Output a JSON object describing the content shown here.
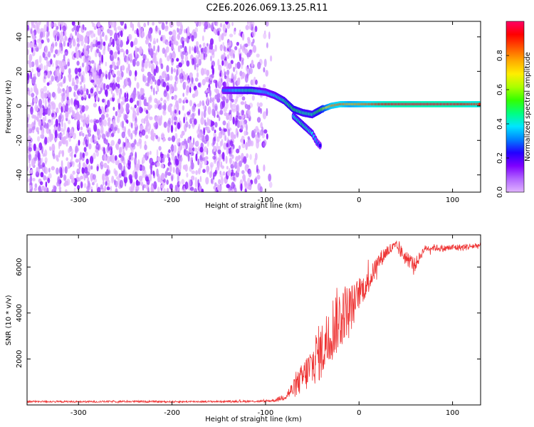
{
  "title": "C2E6.2026.069.13.25.R11",
  "chart_data": [
    {
      "type": "heatmap",
      "name": "spectrogram",
      "xlabel": "Height of straight line (km)",
      "ylabel": "Frequency (Hz)",
      "xlim": [
        -355,
        130
      ],
      "ylim": [
        -50,
        49
      ],
      "xticks": [
        -300,
        -200,
        -100,
        0,
        100
      ],
      "yticks": [
        -40,
        -20,
        0,
        20,
        40
      ],
      "colorbar": {
        "label": "Normalized spectral amplitude",
        "range": [
          0,
          1
        ],
        "ticks": [
          0.0,
          0.2,
          0.4,
          0.6,
          0.8
        ],
        "colormap": [
          "#e0b3ff",
          "#b266ff",
          "#7f00ff",
          "#2200ff",
          "#0080ff",
          "#00e5ff",
          "#00ff80",
          "#33ff00",
          "#aaff00",
          "#ffee00",
          "#ffaa00",
          "#ff5500",
          "#ff0000",
          "#ff0066"
        ]
      },
      "noise_region": {
        "x_from": -355,
        "x_to": -90,
        "y_from": -50,
        "y_to": 49,
        "amplitude": 0.1
      },
      "signal_ridge": [
        {
          "x": -145,
          "y": 9,
          "a": 0.3
        },
        {
          "x": -130,
          "y": 9,
          "a": 0.4
        },
        {
          "x": -115,
          "y": 9,
          "a": 0.45
        },
        {
          "x": -100,
          "y": 8,
          "a": 0.35
        },
        {
          "x": -90,
          "y": 6,
          "a": 0.4
        },
        {
          "x": -80,
          "y": 3,
          "a": 0.45
        },
        {
          "x": -70,
          "y": -2,
          "a": 0.5
        },
        {
          "x": -60,
          "y": -4,
          "a": 0.45
        },
        {
          "x": -50,
          "y": -5,
          "a": 0.45
        },
        {
          "x": -40,
          "y": -2,
          "a": 0.55
        },
        {
          "x": -30,
          "y": 0,
          "a": 0.8
        },
        {
          "x": -20,
          "y": 1,
          "a": 0.85
        },
        {
          "x": -10,
          "y": 1,
          "a": 0.75
        },
        {
          "x": 0,
          "y": 1,
          "a": 0.8
        },
        {
          "x": 20,
          "y": 1,
          "a": 0.9
        },
        {
          "x": 40,
          "y": 1,
          "a": 0.95
        },
        {
          "x": 60,
          "y": 1,
          "a": 0.95
        },
        {
          "x": 80,
          "y": 1,
          "a": 0.95
        },
        {
          "x": 100,
          "y": 1,
          "a": 0.95
        },
        {
          "x": 120,
          "y": 1,
          "a": 0.9
        },
        {
          "x": 130,
          "y": 1,
          "a": 0.9
        }
      ],
      "signal_branch": [
        {
          "x": -70,
          "y": -6,
          "a": 0.4
        },
        {
          "x": -60,
          "y": -11,
          "a": 0.45
        },
        {
          "x": -50,
          "y": -16,
          "a": 0.4
        },
        {
          "x": -45,
          "y": -21,
          "a": 0.3
        },
        {
          "x": -40,
          "y": -24,
          "a": 0.2
        }
      ]
    },
    {
      "type": "line",
      "name": "snr",
      "xlabel": "Height of straight line (km)",
      "ylabel": "SNR (10 * v/v)",
      "xlim": [
        -355,
        130
      ],
      "ylim": [
        0,
        7400
      ],
      "xticks": [
        -300,
        -200,
        -100,
        0,
        100
      ],
      "yticks": [
        2000,
        4000,
        6000
      ],
      "color": "#ee3333",
      "series": [
        {
          "name": "SNR",
          "x": [
            -355,
            -300,
            -250,
            -200,
            -150,
            -100,
            -90,
            -80,
            -70,
            -60,
            -50,
            -45,
            -40,
            -35,
            -30,
            -25,
            -20,
            -15,
            -10,
            -5,
            0,
            10,
            20,
            30,
            40,
            50,
            60,
            70,
            80,
            90,
            100,
            110,
            120,
            130
          ],
          "y": [
            150,
            140,
            150,
            140,
            150,
            160,
            200,
            350,
            700,
            1200,
            1700,
            2200,
            2300,
            2800,
            3200,
            3600,
            3800,
            4100,
            4200,
            4400,
            4900,
            5300,
            6200,
            6700,
            6900,
            6400,
            6100,
            6800,
            6850,
            6800,
            6850,
            6850,
            6900,
            6950
          ],
          "noise": [
            40,
            40,
            40,
            40,
            40,
            50,
            70,
            150,
            400,
            700,
            1000,
            1200,
            1300,
            1300,
            1400,
            1500,
            1400,
            1200,
            1100,
            900,
            700,
            500,
            400,
            300,
            250,
            350,
            300,
            150,
            150,
            150,
            150,
            150,
            150,
            150
          ]
        }
      ]
    }
  ]
}
